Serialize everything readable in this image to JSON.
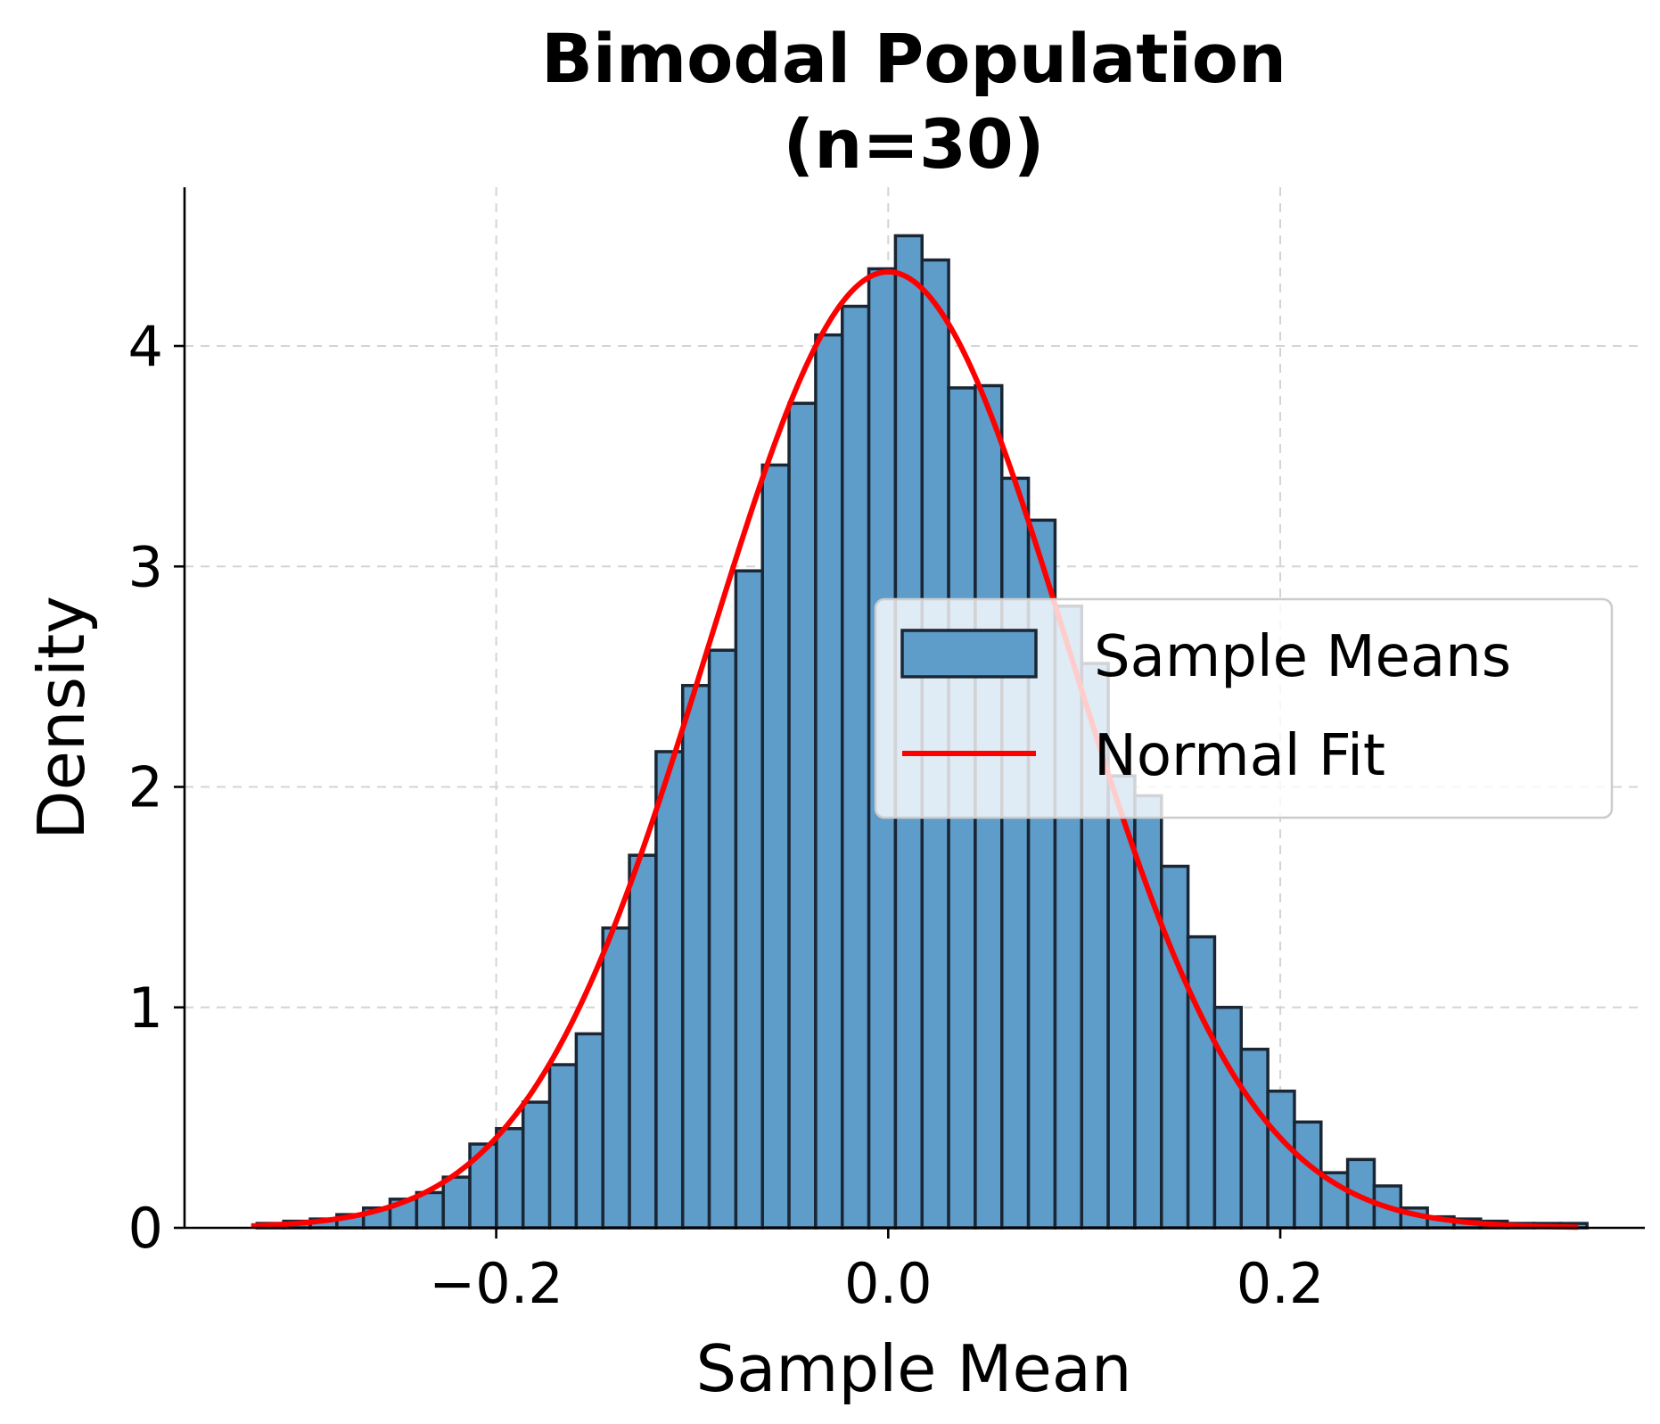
{
  "chart_data": {
    "type": "bar",
    "title": "Bimodal Population\n(n=30)",
    "title_lines": [
      "Bimodal Population",
      "(n=30)"
    ],
    "xlabel": "Sample Mean",
    "ylabel": "Density",
    "xlim": [
      -0.359,
      0.386
    ],
    "ylim": [
      0,
      4.72
    ],
    "xticks": [
      -0.2,
      0.0,
      0.2
    ],
    "xtick_labels": [
      "−0.2",
      "0.0",
      "0.2"
    ],
    "yticks": [
      0,
      1,
      2,
      3,
      4
    ],
    "ytick_labels": [
      "0",
      "1",
      "2",
      "3",
      "4"
    ],
    "grid": true,
    "legend_position": "center-right",
    "histogram": {
      "name": "Sample Means",
      "color": "#5e9cca",
      "edge_color": "#1a2633",
      "bin_start": -0.322,
      "bin_width": 0.01357,
      "values": [
        0.02,
        0.03,
        0.04,
        0.06,
        0.09,
        0.13,
        0.16,
        0.23,
        0.38,
        0.45,
        0.57,
        0.74,
        0.88,
        1.36,
        1.69,
        2.16,
        2.46,
        2.62,
        2.98,
        3.46,
        3.74,
        4.05,
        4.18,
        4.35,
        4.5,
        4.39,
        3.81,
        3.82,
        3.4,
        3.21,
        2.82,
        2.56,
        2.05,
        1.96,
        1.64,
        1.32,
        1.0,
        0.81,
        0.62,
        0.48,
        0.25,
        0.31,
        0.19,
        0.09,
        0.05,
        0.04,
        0.03,
        0.02,
        0.02,
        0.02
      ]
    },
    "fit": {
      "name": "Normal Fit",
      "color": "#ff0000",
      "mean": 0.0,
      "std": 0.092,
      "x_range": [
        -0.325,
        0.352
      ]
    },
    "legend": [
      "Sample Means",
      "Normal Fit"
    ]
  }
}
